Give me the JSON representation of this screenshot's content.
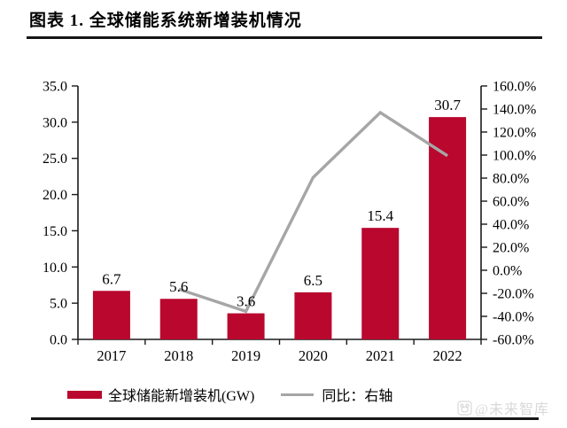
{
  "header": {
    "title": "图表 1. 全球储能系统新增装机情况"
  },
  "colors": {
    "bar": "#b9072e",
    "line": "#a6a6a6",
    "axis": "#1a1a1a",
    "rule": "#161616",
    "watermark": "#d9d9d9"
  },
  "chart_data": {
    "type": "bar",
    "title": "全球储能系统新增装机情况",
    "categories": [
      "2017",
      "2018",
      "2019",
      "2020",
      "2021",
      "2022"
    ],
    "series": [
      {
        "name": "全球储能新增装机(GW)",
        "type": "bar",
        "axis": "left",
        "values": [
          6.7,
          5.6,
          3.6,
          6.5,
          15.4,
          30.7
        ],
        "data_labels": [
          "6.7",
          "5.6",
          "3.6",
          "6.5",
          "15.4",
          "30.7"
        ],
        "color": "#b9072e"
      },
      {
        "name": "同比：右轴",
        "type": "line",
        "axis": "right",
        "values": [
          null,
          -16.4,
          -35.7,
          80.6,
          136.9,
          99.4
        ],
        "color": "#a6a6a6"
      }
    ],
    "left_axis": {
      "min": 0,
      "max": 35,
      "step": 5,
      "tick_labels": [
        "35.0",
        "30.0",
        "25.0",
        "20.0",
        "15.0",
        "10.0",
        "5.0",
        "0.0"
      ]
    },
    "right_axis": {
      "min": -60,
      "max": 160,
      "step": 20,
      "tick_labels": [
        "160.0%",
        "140.0%",
        "120.0%",
        "100.0%",
        "80.0%",
        "60.0%",
        "40.0%",
        "20.0%",
        "0.0%",
        "-20.0%",
        "-40.0%",
        "-60.0%"
      ]
    },
    "grid": false,
    "legend_position": "bottom"
  },
  "legend": {
    "items": [
      {
        "label": "全球储能新增装机(GW)",
        "swatch": "bar",
        "color": "#b9072e"
      },
      {
        "label": "同比：右轴",
        "swatch": "line",
        "color": "#a6a6a6"
      }
    ]
  },
  "watermark": {
    "icon": "paw-icon",
    "text": "@未来智库",
    "color": "#d9d9d9"
  }
}
